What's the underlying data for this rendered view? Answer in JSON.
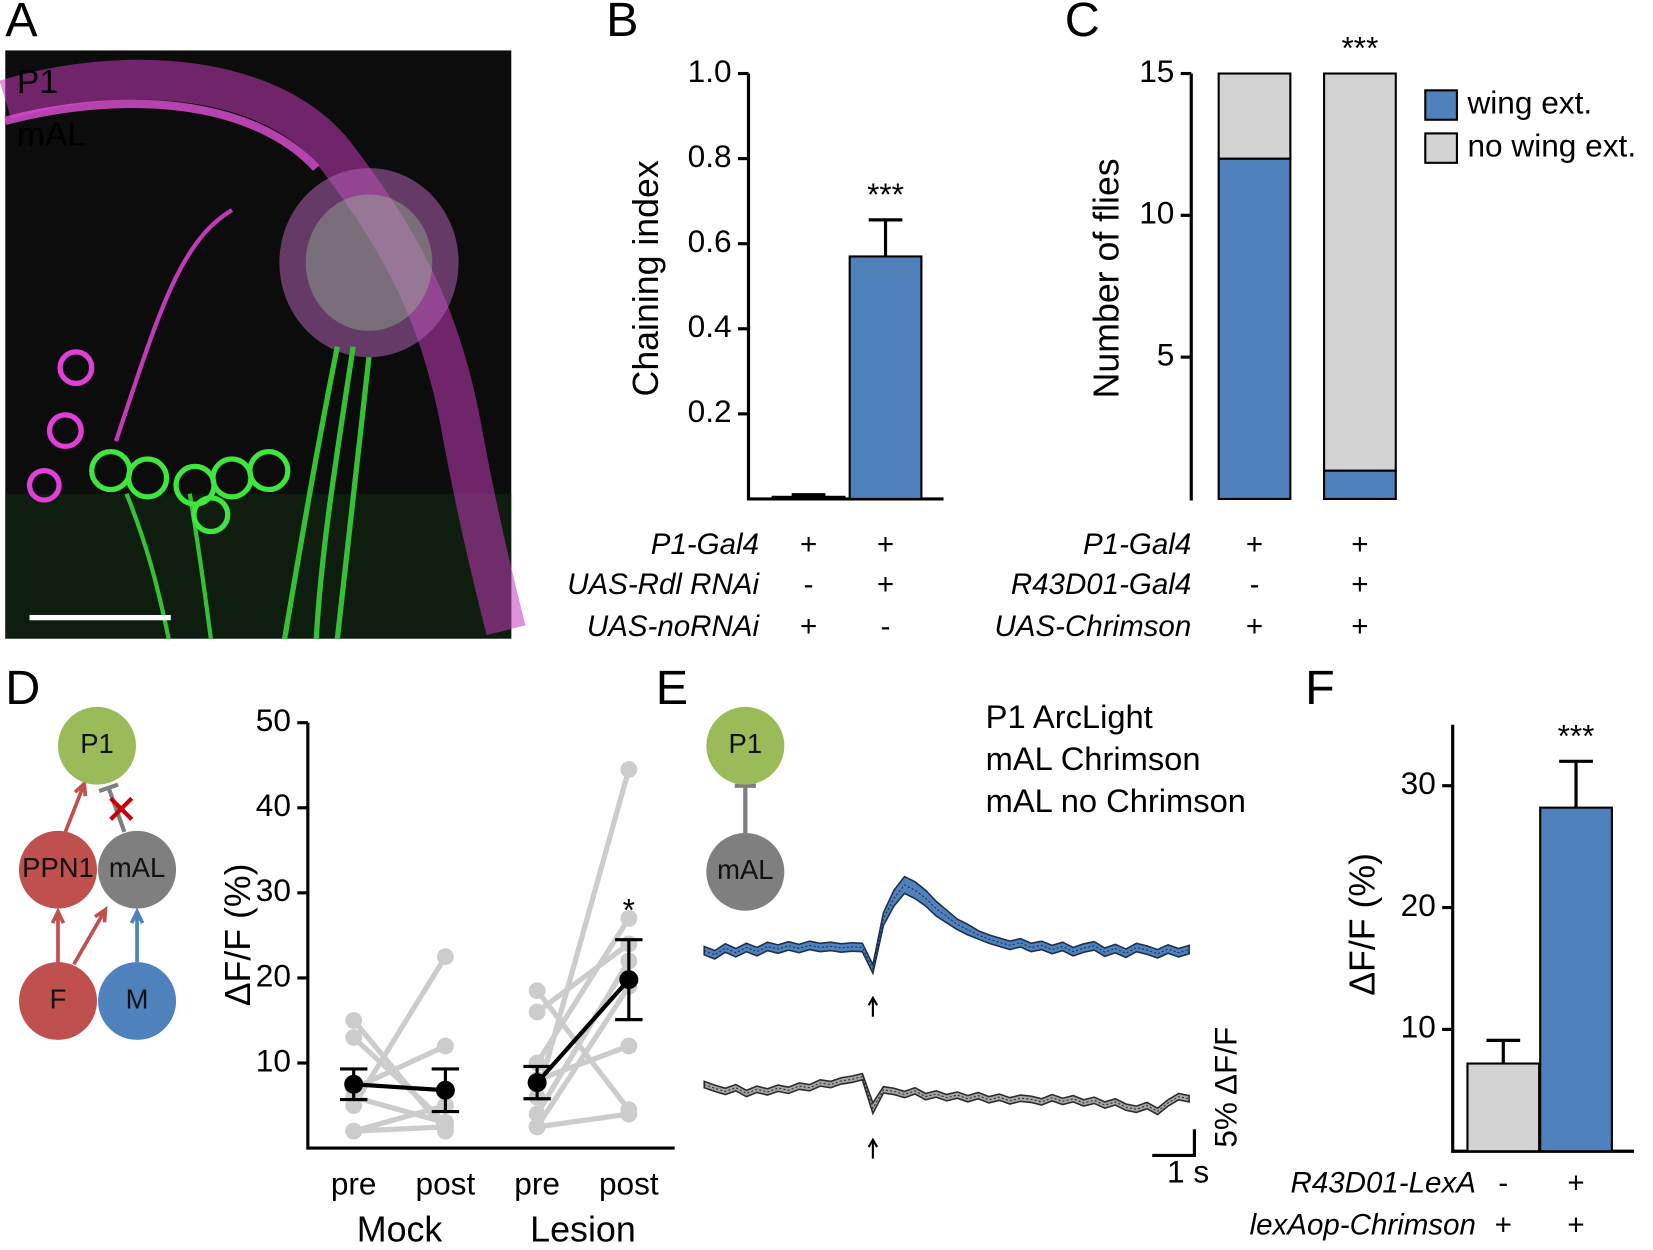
{
  "panel_labels": [
    "A",
    "B",
    "C",
    "D",
    "E",
    "F"
  ],
  "image_labels": [
    {
      "text": "P1",
      "color": "#e040d8"
    },
    {
      "text": "mAL",
      "color": "#3ee63e"
    }
  ],
  "diagram_D": {
    "nodes": [
      "P1",
      "PPN1",
      "mAL",
      "F",
      "M"
    ]
  },
  "diagram_E": {
    "nodes": [
      "P1",
      "mAL"
    ]
  },
  "chart_data": [
    {
      "type": "bar",
      "ylabel": "Chaining index",
      "categories": [
        null,
        null
      ],
      "values": [
        0.005,
        0.57
      ],
      "errors": [
        0.005,
        0.086
      ],
      "colors": [
        "#4f81bd",
        "#4f81bd"
      ],
      "ylim": [
        0,
        1
      ],
      "yticks": [
        0.2,
        0.4,
        0.6,
        0.8,
        {
          "value": 1,
          "label": "1.0"
        }
      ],
      "significance": [
        null,
        "***"
      ],
      "genotypes": [
        {
          "label": "P1-Gal4",
          "signs": [
            "+",
            "+"
          ]
        },
        {
          "label": "UAS-Rdl RNAi",
          "signs": [
            "-",
            "+"
          ]
        },
        {
          "label": "UAS-noRNAi",
          "signs": [
            "+",
            "-"
          ]
        }
      ]
    },
    {
      "type": "stacked_bar",
      "ylabel": "Number of flies",
      "categories": [
        null,
        null
      ],
      "series": [
        {
          "name": "wing ext.",
          "color": "#4f81bd",
          "values": [
            12,
            1
          ]
        },
        {
          "name": "no wing ext.",
          "color": "#d3d3d3",
          "values": [
            3,
            14
          ]
        }
      ],
      "ylim": [
        0,
        15
      ],
      "yticks": [
        5,
        10,
        15
      ],
      "legend": "upper right",
      "significance": [
        null,
        "***"
      ],
      "genotypes": [
        {
          "label": "P1-Gal4",
          "signs": [
            "+",
            "+"
          ]
        },
        {
          "label": "R43D01-Gal4",
          "signs": [
            "-",
            "+"
          ]
        },
        {
          "label": "UAS-Chrimson",
          "signs": [
            "+",
            "+"
          ]
        }
      ]
    },
    {
      "type": "paired_line",
      "ylabel": "ΔF/F (%)",
      "categories": [
        "pre",
        "post",
        "pre",
        "post"
      ],
      "groups": [
        "Mock",
        "Lesion"
      ],
      "ylim": [
        0,
        50
      ],
      "yticks": [
        10,
        20,
        30,
        40,
        50
      ],
      "significance": [
        null,
        null,
        null,
        "*"
      ],
      "series": [
        {
          "color": "#cccccc",
          "values": [
            15,
            2,
            null,
            null
          ]
        },
        {
          "color": "#cccccc",
          "values": [
            13,
            3,
            null,
            null
          ]
        },
        {
          "color": "#cccccc",
          "values": [
            5,
            22.5,
            null,
            null
          ]
        },
        {
          "color": "#cccccc",
          "values": [
            7,
            12,
            null,
            null
          ]
        },
        {
          "color": "#cccccc",
          "values": [
            6,
            3,
            null,
            null
          ]
        },
        {
          "color": "#cccccc",
          "values": [
            2,
            5,
            null,
            null
          ]
        },
        {
          "color": "#cccccc",
          "values": [
            2,
            2.5,
            null,
            null
          ]
        },
        {
          "color": "#cccccc",
          "values": [
            null,
            null,
            18.5,
            4.5
          ]
        },
        {
          "color": "#cccccc",
          "values": [
            null,
            null,
            16,
            24
          ]
        },
        {
          "color": "#cccccc",
          "values": [
            null,
            null,
            10,
            27
          ]
        },
        {
          "color": "#cccccc",
          "values": [
            null,
            null,
            6,
            44.5
          ]
        },
        {
          "color": "#cccccc",
          "values": [
            null,
            null,
            4,
            22
          ]
        },
        {
          "color": "#cccccc",
          "values": [
            null,
            null,
            2.5,
            19
          ]
        },
        {
          "color": "#cccccc",
          "values": [
            null,
            null,
            8,
            12
          ]
        },
        {
          "color": "#cccccc",
          "values": [
            null,
            null,
            2.5,
            4
          ]
        },
        {
          "color": "#000000",
          "values": [
            7.5,
            6.8,
            null,
            null
          ],
          "errors": [
            1.8,
            2.5,
            null,
            null
          ]
        },
        {
          "color": "#000000",
          "values": [
            null,
            null,
            7.7,
            19.8
          ],
          "errors": [
            null,
            null,
            1.9,
            4.7
          ]
        }
      ]
    },
    {
      "type": "trace",
      "labels": [
        {
          "text": "P1 ArcLight",
          "color": "#9bbb59"
        }
      ],
      "x": [
        0,
        0.25,
        0.5,
        0.75,
        1,
        1.25,
        1.5,
        1.75,
        2,
        2.25,
        2.5,
        2.75,
        3,
        3.25,
        3.5,
        3.75,
        4,
        4.25,
        4.5,
        4.75,
        5,
        5.25,
        5.5,
        5.75,
        6,
        6.25,
        6.5,
        6.75,
        7,
        7.25,
        7.5,
        7.75,
        8,
        8.25,
        8.5,
        8.75,
        9,
        9.25,
        9.5,
        9.75,
        10,
        10.25,
        10.5,
        10.75,
        11,
        11.25,
        11.5
      ],
      "stimulus": 4,
      "scalebar": {
        "x": 1,
        "x_label": "1 s",
        "y": 5,
        "y_label": "5% ΔF/F"
      },
      "series": [
        {
          "name": "mAL Chrimson",
          "color": "#4f81bd",
          "line_color": "#1c2f4f",
          "values": [
            0,
            -0.8,
            0.5,
            -0.4,
            0.6,
            -0.2,
            0.8,
            0.3,
            0.9,
            0.4,
            1.0,
            0.6,
            0.8,
            0.5,
            0.7,
            0.6,
            -3.5,
            6,
            10,
            12.5,
            11.5,
            10,
            8,
            6.5,
            5,
            4,
            3,
            2.2,
            1.6,
            1.0,
            1.5,
            0.6,
            1.0,
            0.2,
            0.8,
            -0.2,
            0.5,
            0.9,
            -0.3,
            0.4,
            -0.5,
            0.6,
            0.1,
            -0.6,
            0.3,
            -0.4,
            0.2
          ],
          "errors": [
            0.8,
            0.8,
            0.8,
            0.8,
            0.8,
            0.8,
            0.8,
            0.8,
            0.8,
            0.8,
            0.8,
            0.8,
            0.8,
            0.8,
            0.8,
            0.8,
            0.8,
            1.2,
            1.5,
            1.6,
            1.6,
            1.5,
            1.4,
            1.2,
            1.0,
            1.0,
            0.8,
            0.8,
            0.8,
            0.8,
            0.8,
            0.8,
            0.8,
            0.8,
            0.8,
            0.8,
            0.8,
            0.8,
            0.8,
            0.8,
            0.8,
            0.8,
            0.8,
            0.8,
            0.8,
            0.8,
            0.8
          ]
        },
        {
          "name": "mAL no Chrimson",
          "color": "#a6a6a6",
          "line_color": "#2b2b2b",
          "values": [
            1.5,
            0.8,
            0.2,
            0.9,
            -0.2,
            0.6,
            0.1,
            0.8,
            0.4,
            1.2,
            0.9,
            1.8,
            1.5,
            2.2,
            2.5,
            3.0,
            -3.0,
            0.5,
            0.2,
            -0.4,
            0.3,
            -0.8,
            -0.3,
            -1.0,
            -0.5,
            -1.2,
            -0.6,
            -1.4,
            -0.9,
            -1.6,
            -1.1,
            -1.3,
            -1.8,
            -1.0,
            -1.7,
            -1.2,
            -2.0,
            -1.5,
            -2.4,
            -1.8,
            -2.8,
            -3.2,
            -2.5,
            -3.6,
            -2.0,
            -0.8,
            -1.2
          ],
          "errors": [
            0.6,
            0.6,
            0.6,
            0.6,
            0.6,
            0.6,
            0.6,
            0.6,
            0.6,
            0.6,
            0.6,
            0.6,
            0.6,
            0.6,
            0.6,
            0.6,
            1.0,
            0.6,
            0.6,
            0.6,
            0.6,
            0.6,
            0.6,
            0.6,
            0.6,
            0.6,
            0.6,
            0.6,
            0.6,
            0.6,
            0.6,
            0.6,
            0.6,
            0.6,
            0.6,
            0.6,
            0.6,
            0.6,
            0.6,
            0.6,
            0.6,
            0.6,
            0.6,
            0.6,
            0.6,
            0.6,
            0.6
          ]
        }
      ]
    },
    {
      "type": "bar",
      "ylabel": "ΔF/F (%)",
      "categories": [
        null,
        null
      ],
      "values": [
        7.2,
        28.2
      ],
      "errors": [
        1.9,
        3.8
      ],
      "colors": [
        "#d3d3d3",
        "#4f81bd"
      ],
      "ylim": [
        0,
        35
      ],
      "yticks": [
        10,
        20,
        30
      ],
      "significance": [
        null,
        "***"
      ],
      "genotypes": [
        {
          "label": "R43D01-LexA",
          "signs": [
            "-",
            "+"
          ]
        },
        {
          "label": "lexAop-Chrimson",
          "signs": [
            "+",
            "+"
          ]
        }
      ]
    }
  ]
}
